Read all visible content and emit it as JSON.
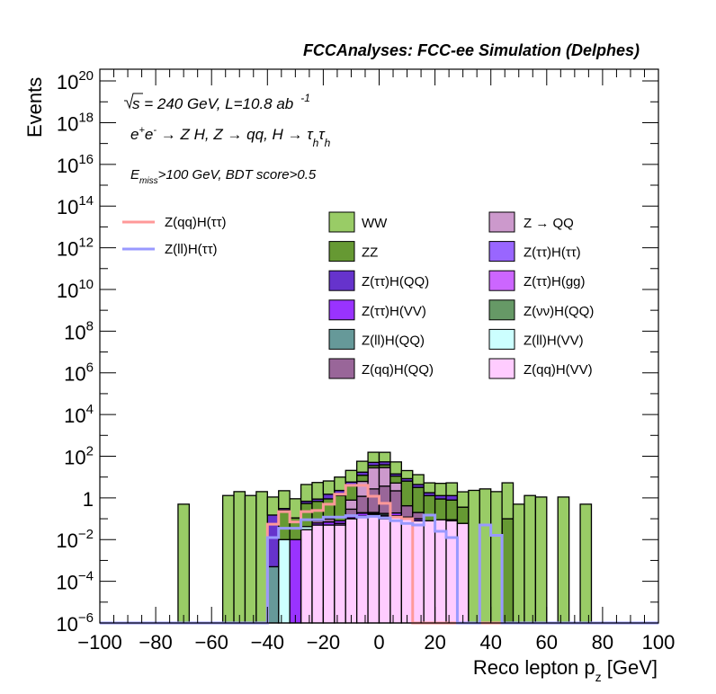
{
  "chart_data": {
    "type": "bar",
    "stacked": true,
    "title": "FCCAnalyses: FCC-ee Simulation (Delphes)",
    "annotations": {
      "energy_prefix": "s",
      "energy": " = 240 GeV, L=10.8 ab",
      "lumi_exp": "-1",
      "process_e": "e",
      "process_plus": "+",
      "process_e2": "e",
      "process_minus": "-",
      "process_rest": " → Z H, Z  → qq, H  → τ",
      "process_sub1": "h",
      "process_tau2": "τ",
      "process_sub2": "h",
      "cut_E": "E",
      "cut_sub": "miss",
      "cut_rest": ">100 GeV, BDT score>0.5"
    },
    "xlabel": "Reco lepton p",
    "xlabel_sub": "z",
    "xlabel_unit": " [GeV]",
    "ylabel": "Events",
    "xlim": [
      -100,
      100
    ],
    "ylim": [
      1e-06,
      1e+21
    ],
    "yscale": "log",
    "bin_width": 4,
    "x_ticks": [
      "−100",
      "−80",
      "−60",
      "−40",
      "−20",
      "0",
      "20",
      "40",
      "60",
      "80",
      "100"
    ],
    "x_tick_values": [
      -100,
      -80,
      -60,
      -40,
      -20,
      0,
      20,
      40,
      60,
      80,
      100
    ],
    "y_ticks": [
      {
        "exp": 20,
        "base": "10",
        "sup": "20"
      },
      {
        "exp": 18,
        "base": "10",
        "sup": "18"
      },
      {
        "exp": 16,
        "base": "10",
        "sup": "16"
      },
      {
        "exp": 14,
        "base": "10",
        "sup": "14"
      },
      {
        "exp": 12,
        "base": "10",
        "sup": "12"
      },
      {
        "exp": 10,
        "base": "10",
        "sup": "10"
      },
      {
        "exp": 8,
        "base": "10",
        "sup": "8"
      },
      {
        "exp": 6,
        "base": "10",
        "sup": "6"
      },
      {
        "exp": 4,
        "base": "10",
        "sup": "4"
      },
      {
        "exp": 2,
        "base": "10",
        "sup": "2"
      },
      {
        "exp": 0,
        "base": "1",
        "sup": ""
      },
      {
        "exp": -2,
        "base": "10",
        "sup": "−2"
      },
      {
        "exp": -4,
        "base": "10",
        "sup": "−4"
      },
      {
        "exp": -6,
        "base": "10",
        "sup": "−6"
      }
    ],
    "stack_series": [
      {
        "name": "Z(qq)H(VV)",
        "color": "#ffccff",
        "bins": {
          "18": 0.03,
          "19": 0.05,
          "20": 0.05,
          "21": 0.05,
          "22": 0.1,
          "23": 0.12,
          "24": 0.15,
          "25": 0.1,
          "26": 0.12,
          "27": 0.1,
          "28": 0.08,
          "29": 0.08,
          "30": 0.09,
          "31": 0.08,
          "32": 0.06
        }
      },
      {
        "name": "Z(ll)H(VV)",
        "color": "#ccffff",
        "bins": {
          "16": 0.01,
          "18": 0.012,
          "23": 0.015
        }
      },
      {
        "name": "Z(νν)H(QQ)",
        "color": "#669966",
        "bins": {
          "24": 0.0003
        }
      },
      {
        "name": "Z(ττ)H(gg)",
        "color": "#cc66ff",
        "bins": {
          "21": 0.01,
          "22": 0.008,
          "24": 0.02,
          "25": 0.03,
          "26": 0.02
        }
      },
      {
        "name": "Z(ττ)H(VV)",
        "color": "#9933ff",
        "bins": {
          "17": 0.01,
          "19": 0.012,
          "20": 0.02,
          "21": 0.02,
          "22": 0.03,
          "23": 0.05,
          "24": 0.02,
          "25": 0.02,
          "26": 0.05,
          "27": 0.02,
          "28": 0.02,
          "31": 0.01
        }
      },
      {
        "name": "Z(ττ)H(ττ)",
        "color": "#9966ff",
        "bins": {
          "23": 0.01,
          "24": 0.01
        }
      },
      {
        "name": "Z(ll)H(QQ)",
        "color": "#669999",
        "bins": {
          "15": 0.0005,
          "25": 0.03
        }
      },
      {
        "name": "Z(qq)H(QQ)",
        "color": "#996699",
        "bins": {
          "19": 0.02,
          "20": 0.03,
          "22": 0.15,
          "23": 1.0,
          "24": 2.5,
          "25": 3.5,
          "26": 2.0,
          "27": 0.3,
          "28": 0.1
        }
      },
      {
        "name": "Z → QQ",
        "color": "#cc99cc",
        "bins": {
          "22": 0.5,
          "23": 5,
          "24": 25,
          "25": 25,
          "26": 3
        }
      },
      {
        "name": "ZZ",
        "color": "#669933",
        "bins": {
          "16": 0.25,
          "17": 0.1,
          "18": 0.5,
          "19": 0.6,
          "20": 0.8,
          "21": 1.2,
          "22": 3,
          "23": 6,
          "24": 8,
          "25": 10,
          "26": 6,
          "27": 6,
          "28": 3,
          "29": 1.2,
          "30": 0.8,
          "31": 0.7,
          "32": 0.3,
          "36": 0.1
        }
      },
      {
        "name": "Z(ττ)H(QQ)",
        "color": "#6633cc",
        "bins": {
          "15": 0.15,
          "16": 0.05,
          "18": 0.15,
          "19": 0.2,
          "20": 0.6,
          "21": 1.0,
          "22": 2,
          "23": 5,
          "24": 15,
          "25": 15,
          "26": 3,
          "27": 2,
          "28": 1.2,
          "29": 0.5,
          "30": 0.4,
          "31": 0.5
        }
      },
      {
        "name": "WW",
        "color": "#99cc66",
        "bins": {
          "7": 0.5,
          "11": 1.3,
          "12": 2.0,
          "13": 1.3,
          "14": 2.0,
          "15": 0.95,
          "16": 1.9,
          "17": 0.8,
          "18": 3.7,
          "19": 4.6,
          "20": 5.0,
          "21": 7.7,
          "22": 15,
          "23": 40,
          "24": 104,
          "25": 100,
          "26": 39,
          "27": 12,
          "28": 8.6,
          "29": 3.5,
          "30": 3.7,
          "31": 4.0,
          "32": 1.6,
          "33": 2.3,
          "34": 2.7,
          "35": 2.0,
          "36": 5.2,
          "37": 0.5,
          "38": 1.3,
          "39": 1.1,
          "41": 1.1,
          "43": 0.5
        }
      }
    ],
    "line_series": [
      {
        "name": "Z(qq)H(ττ)",
        "color": "#ff9999",
        "bins": {
          "14": 1e-07,
          "15": 0.055,
          "16": 0.22,
          "17": 0.07,
          "18": 0.22,
          "19": 0.25,
          "20": 0.5,
          "21": 1.5,
          "22": 4.0,
          "23": 4.0,
          "24": 1.2,
          "25": 0.55,
          "26": 0.12,
          "27": 0.1
        }
      },
      {
        "name": "Z(ll)H(ττ)",
        "color": "#9999ff",
        "bins": {
          "15": 0.0125,
          "16": 0.035,
          "17": 0.035,
          "18": 0.09,
          "19": 0.09,
          "20": 0.12,
          "21": 0.12,
          "22": 0.14,
          "23": 0.12,
          "24": 0.13,
          "25": 0.11,
          "26": 0.08,
          "27": 0.06,
          "28": 0.05,
          "29": 0.15,
          "30": 0.025,
          "31": 0.0125,
          "34": 0.05,
          "35": 0.016
        }
      }
    ]
  },
  "legend": {
    "lines": [
      "Z(qq)H(ττ)",
      "Z(ll)H(ττ)"
    ],
    "fills_col1": [
      "WW",
      "ZZ",
      "Z(ττ)H(QQ)",
      "Z(ττ)H(VV)",
      "Z(ll)H(QQ)",
      "Z(qq)H(QQ)"
    ],
    "fills_col2": [
      "Z → QQ",
      "Z(ττ)H(ττ)",
      "Z(ττ)H(gg)",
      "Z(νν)H(QQ)",
      "Z(ll)H(VV)",
      "Z(qq)H(VV)"
    ]
  }
}
